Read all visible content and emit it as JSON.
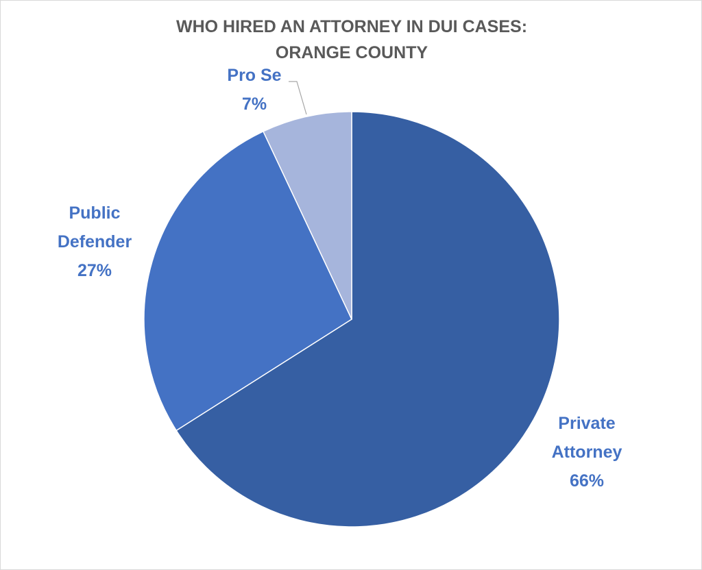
{
  "chart_data": {
    "type": "pie",
    "title": [
      "WHO HIRED AN ATTORNEY IN DUI CASES:",
      "ORANGE COUNTY"
    ],
    "categories": [
      "Private Attorney",
      "Public Defender",
      "Pro Se"
    ],
    "values": [
      66,
      27,
      7
    ],
    "value_labels": [
      "66%",
      "27%",
      "7%"
    ],
    "colors": [
      "#365fa3",
      "#4472c4",
      "#a6b5dc"
    ]
  }
}
